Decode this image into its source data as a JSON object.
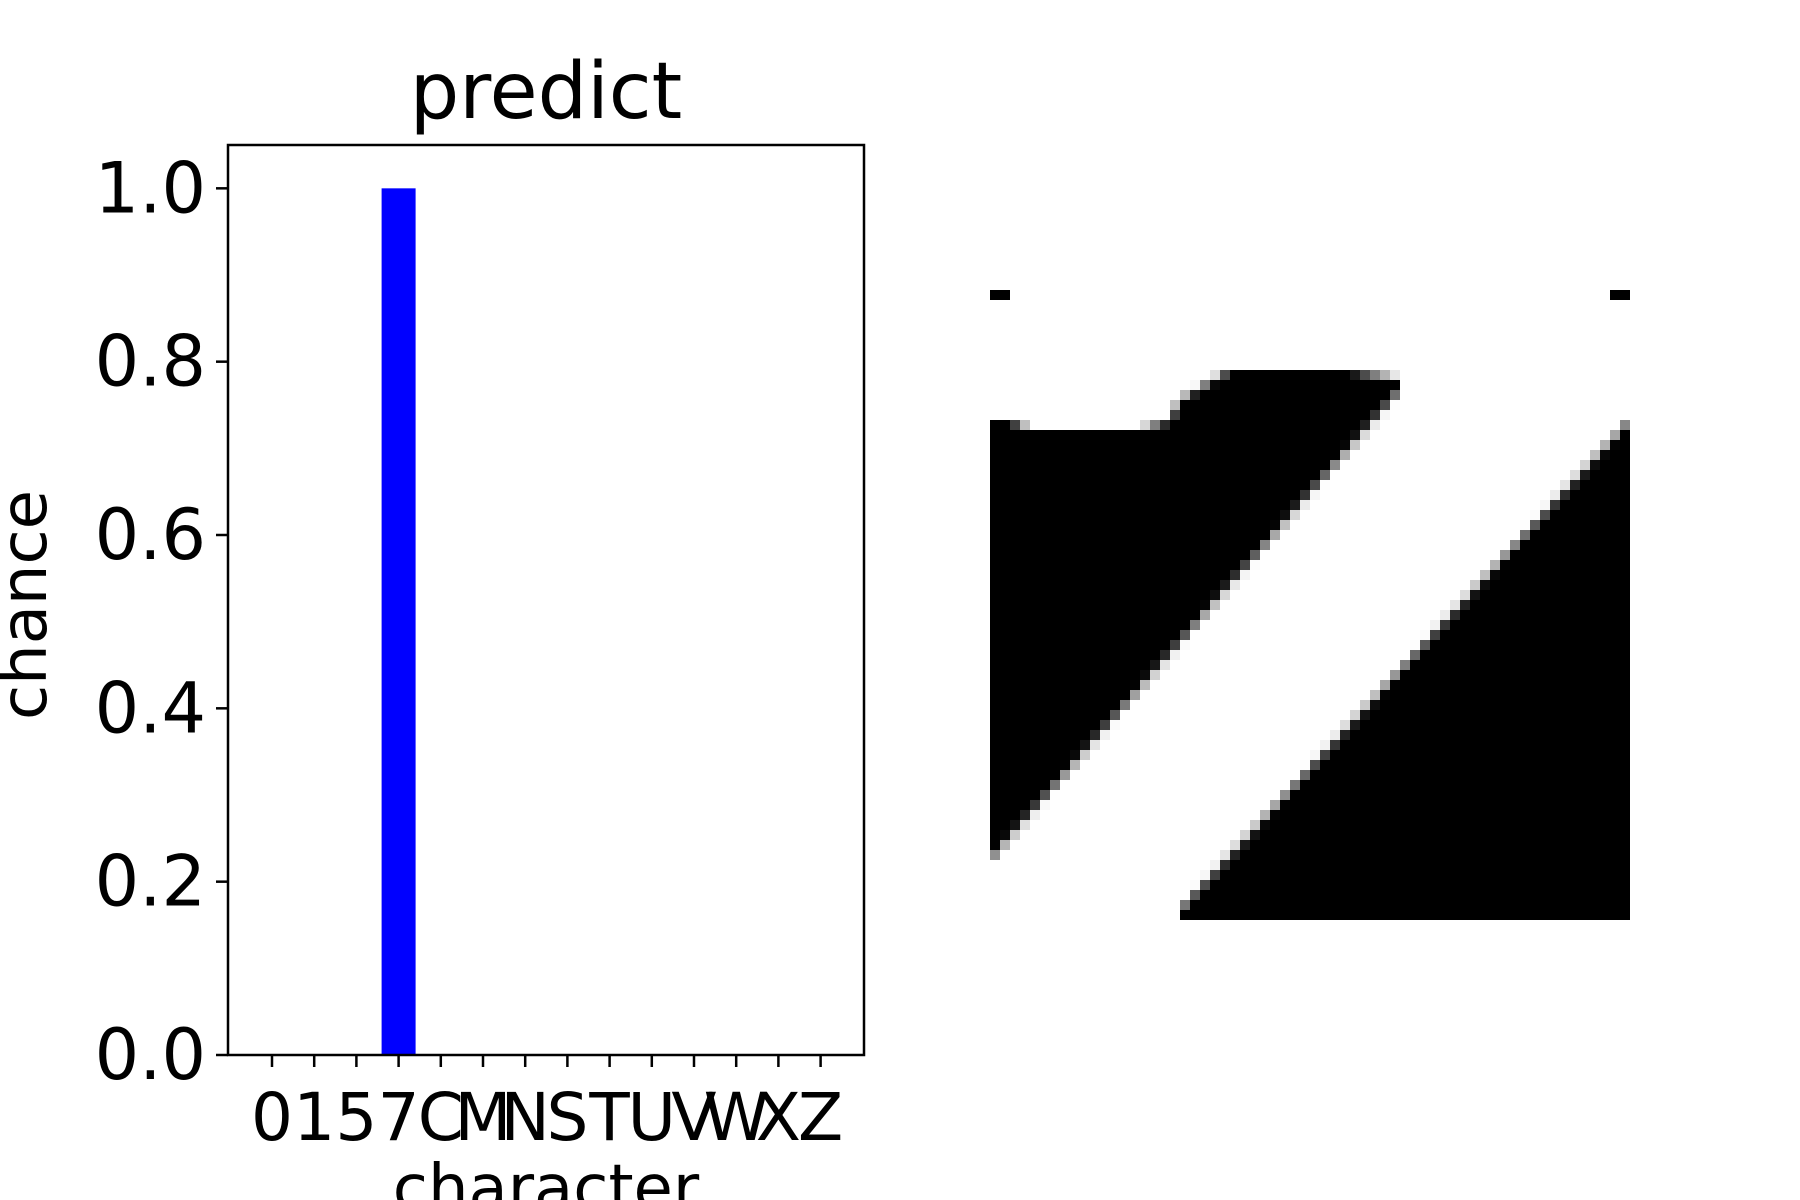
{
  "chart_data": {
    "type": "bar",
    "title": "predict",
    "xlabel": "character",
    "ylabel": "chance",
    "categories": [
      "0",
      "1",
      "5",
      "7",
      "C",
      "M",
      "N",
      "S",
      "T",
      "U",
      "V",
      "W",
      "X",
      "Z"
    ],
    "values": [
      0,
      0,
      0,
      1.0,
      0,
      0,
      0,
      0,
      0,
      0,
      0,
      0,
      0,
      0
    ],
    "ylim": [
      0,
      1.05
    ],
    "yticks": [
      "0.0",
      "0.2",
      "0.4",
      "0.6",
      "0.8",
      "1.0"
    ],
    "grid": false,
    "bar_color": "#0000ff"
  },
  "input_image": {
    "description_colors": {
      "ink": "#000000",
      "paper": "#ffffff"
    }
  }
}
